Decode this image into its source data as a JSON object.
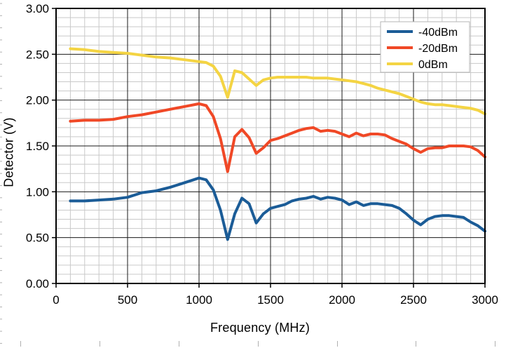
{
  "chart_data": {
    "type": "line",
    "title": "",
    "xlabel": "Frequency (MHz)",
    "ylabel": "Detector (V)",
    "xlim": [
      0,
      3000
    ],
    "ylim": [
      0,
      3
    ],
    "x_major_step": 500,
    "x_minor_step": 100,
    "y_major_step": 0.5,
    "y_minor_step": 0.1,
    "grid": "major+minor",
    "legend_position": "top-right",
    "x_tick_labels": [
      "0",
      "500",
      "1000",
      "1500",
      "2000",
      "2500",
      "3000"
    ],
    "y_tick_labels": [
      "0.00",
      "0.50",
      "1.00",
      "1.50",
      "2.00",
      "2.50",
      "3.00"
    ],
    "x": [
      100,
      200,
      300,
      400,
      500,
      600,
      700,
      800,
      900,
      1000,
      1050,
      1100,
      1150,
      1200,
      1250,
      1300,
      1350,
      1400,
      1450,
      1500,
      1550,
      1600,
      1650,
      1700,
      1750,
      1800,
      1850,
      1900,
      1950,
      2000,
      2050,
      2100,
      2150,
      2200,
      2250,
      2300,
      2350,
      2400,
      2450,
      2500,
      2550,
      2600,
      2650,
      2700,
      2750,
      2800,
      2850,
      2900,
      2950,
      3000
    ],
    "series": [
      {
        "name": "-40dBm",
        "color": "#1B5C97",
        "values": [
          0.9,
          0.9,
          0.91,
          0.92,
          0.94,
          0.99,
          1.01,
          1.05,
          1.1,
          1.15,
          1.13,
          1.02,
          0.8,
          0.48,
          0.76,
          0.93,
          0.87,
          0.66,
          0.76,
          0.82,
          0.84,
          0.86,
          0.9,
          0.92,
          0.93,
          0.95,
          0.92,
          0.94,
          0.93,
          0.91,
          0.86,
          0.89,
          0.85,
          0.87,
          0.87,
          0.86,
          0.85,
          0.82,
          0.76,
          0.69,
          0.64,
          0.7,
          0.73,
          0.74,
          0.74,
          0.73,
          0.72,
          0.67,
          0.63,
          0.57
        ]
      },
      {
        "name": "-20dBm",
        "color": "#F04826",
        "values": [
          1.77,
          1.78,
          1.78,
          1.79,
          1.82,
          1.84,
          1.87,
          1.9,
          1.93,
          1.96,
          1.94,
          1.82,
          1.58,
          1.22,
          1.6,
          1.68,
          1.59,
          1.42,
          1.48,
          1.56,
          1.58,
          1.61,
          1.64,
          1.67,
          1.69,
          1.7,
          1.66,
          1.67,
          1.66,
          1.63,
          1.6,
          1.64,
          1.61,
          1.63,
          1.63,
          1.62,
          1.58,
          1.55,
          1.52,
          1.47,
          1.43,
          1.47,
          1.48,
          1.48,
          1.5,
          1.5,
          1.5,
          1.49,
          1.45,
          1.38
        ]
      },
      {
        "name": "0dBm",
        "color": "#F4D443",
        "values": [
          2.56,
          2.55,
          2.53,
          2.52,
          2.51,
          2.49,
          2.47,
          2.46,
          2.44,
          2.42,
          2.41,
          2.37,
          2.26,
          2.03,
          2.32,
          2.3,
          2.23,
          2.16,
          2.22,
          2.24,
          2.25,
          2.25,
          2.25,
          2.25,
          2.25,
          2.24,
          2.24,
          2.24,
          2.23,
          2.22,
          2.21,
          2.2,
          2.18,
          2.16,
          2.13,
          2.11,
          2.09,
          2.07,
          2.04,
          2.01,
          1.98,
          1.96,
          1.95,
          1.95,
          1.94,
          1.93,
          1.92,
          1.91,
          1.89,
          1.85
        ]
      }
    ],
    "colors": {
      "major_grid": "#1a1a1a",
      "minor_grid": "#c9c9c9",
      "plot_border": "#000000",
      "legend_border": "#b4b4b4",
      "edge_artifact": "#b0b0b0",
      "text": "#000000"
    }
  }
}
